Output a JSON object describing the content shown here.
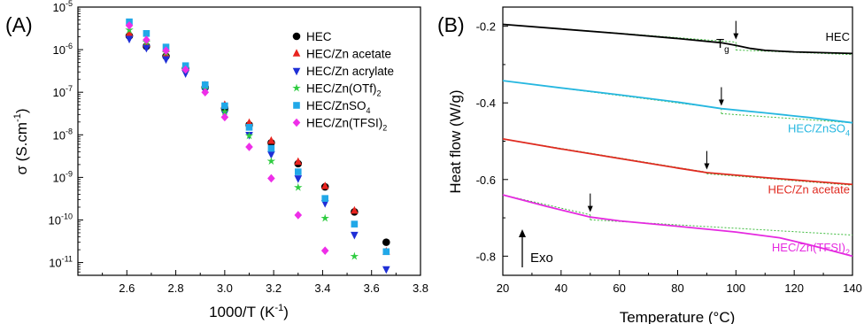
{
  "chart_data": [
    {
      "panel_label": "(A)",
      "type": "scatter",
      "xlabel_main": "1000/T (K",
      "xlabel_sup": "-1",
      "xlabel_end": ")",
      "ylabel_main": "σ (S.cm",
      "ylabel_sup": "-1",
      "ylabel_end": ")",
      "xlim": [
        2.4,
        3.8
      ],
      "ylim_log10": [
        -11.3,
        -5
      ],
      "y_scale": "log",
      "grid": false,
      "legend_position": "top-right",
      "x_ticks": [
        "2.6",
        "2.8",
        "3.0",
        "3.2",
        "3.4",
        "3.6",
        "3.8"
      ],
      "x_tick_values": [
        2.6,
        2.8,
        3.0,
        3.2,
        3.4,
        3.6,
        3.8
      ],
      "y_ticks": [
        {
          "base": "10",
          "exp": "-5",
          "log": -5
        },
        {
          "base": "10",
          "exp": "-6",
          "log": -6
        },
        {
          "base": "10",
          "exp": "-7",
          "log": -7
        },
        {
          "base": "10",
          "exp": "-8",
          "log": -8
        },
        {
          "base": "10",
          "exp": "-9",
          "log": -9
        },
        {
          "base": "10",
          "exp": "-10",
          "log": -10
        },
        {
          "base": "10",
          "exp": "-11",
          "log": -11
        }
      ],
      "x": [
        2.61,
        2.68,
        2.76,
        2.84,
        2.92,
        3.0,
        3.1,
        3.19,
        3.3,
        3.41,
        3.53,
        3.66
      ],
      "series": [
        {
          "name": "HEC",
          "marker": "circle",
          "color": "#000000",
          "values": [
            2.1e-06,
            1.2e-06,
            7e-07,
            3.6e-07,
            1.3e-07,
            4.2e-08,
            1.7e-08,
            6.5e-09,
            2.1e-09,
            6e-10,
            1.55e-10,
            3e-11
          ]
        },
        {
          "name_parts": [
            "HEC/Zn acetate"
          ],
          "name": "HEC/Zn acetate",
          "marker": "triangle-up",
          "color": "#e8231e",
          "values": [
            2.4e-06,
            1.35e-06,
            7.8e-07,
            3.8e-07,
            1.45e-07,
            5e-08,
            1.9e-08,
            7.2e-09,
            2.3e-09,
            6.2e-10,
            1.65e-10,
            1.8e-11
          ]
        },
        {
          "name": "HEC/Zn acrylate",
          "marker": "triangle-down",
          "color": "#1f2fd6",
          "values": [
            1.8e-06,
            1.1e-06,
            6e-07,
            2.8e-07,
            1.1e-07,
            3.2e-08,
            1e-08,
            3.5e-09,
            9.5e-10,
            2.5e-10,
            4.5e-11,
            7e-12
          ]
        },
        {
          "name": "HEC/Zn(OTf)",
          "name_sub": "2",
          "marker": "star",
          "color": "#2ecc40",
          "values": [
            2.9e-06,
            1.5e-06,
            8.5e-07,
            3.5e-07,
            1.2e-07,
            3.5e-08,
            9.5e-09,
            2.4e-09,
            5.8e-10,
            1.1e-10,
            1.4e-11,
            null
          ]
        },
        {
          "name": "HEC/ZnSO",
          "name_sub": "4",
          "marker": "square",
          "color": "#21a8e8",
          "values": [
            4.5e-06,
            2.4e-06,
            1.15e-06,
            4.2e-07,
            1.5e-07,
            4.8e-08,
            1.5e-08,
            4.8e-09,
            1.35e-09,
            3.2e-10,
            8e-11,
            1.8e-11
          ]
        },
        {
          "name": "HEC/Zn(TFSI)",
          "name_sub": "2",
          "marker": "diamond",
          "color": "#ee2ee8",
          "values": [
            3.7e-06,
            1.7e-06,
            9.5e-07,
            3.4e-07,
            1e-07,
            2.6e-08,
            5.2e-09,
            9.5e-10,
            1.3e-10,
            1.9e-11,
            null,
            null
          ]
        }
      ]
    },
    {
      "panel_label": "(B)",
      "type": "line",
      "xlabel": "Temperature (°C)",
      "ylabel": "Heat flow (W/g)",
      "xlim": [
        20,
        140
      ],
      "ylim": [
        -0.85,
        -0.15
      ],
      "grid": false,
      "x_ticks": [
        "20",
        "40",
        "60",
        "80",
        "100",
        "120",
        "140"
      ],
      "x_tick_values": [
        20,
        40,
        60,
        80,
        100,
        120,
        140
      ],
      "y_ticks": [
        "-0.2",
        "-0.4",
        "-0.6",
        "-0.8"
      ],
      "y_tick_values": [
        -0.2,
        -0.4,
        -0.6,
        -0.8
      ],
      "annotation_tg": "T",
      "annotation_tg_sub": "g",
      "annotation_exo": "Exo",
      "fit_line_color": "#3dbb3d",
      "series": [
        {
          "name": "HEC",
          "color": "#000000",
          "tg": 100,
          "x": [
            20,
            40,
            60,
            80,
            95,
            100,
            105,
            110,
            120,
            130,
            140
          ],
          "y": [
            -0.195,
            -0.207,
            -0.219,
            -0.232,
            -0.243,
            -0.25,
            -0.258,
            -0.263,
            -0.267,
            -0.269,
            -0.271
          ],
          "fit_before": [
            -0.195,
            -0.2415
          ],
          "fit_after": [
            -0.262,
            -0.274
          ]
        },
        {
          "name": "HEC/ZnSO",
          "name_sub": "4",
          "color": "#26b7e0",
          "tg": 95,
          "x": [
            20,
            40,
            60,
            80,
            95,
            110,
            125,
            140
          ],
          "y": [
            -0.342,
            -0.361,
            -0.379,
            -0.398,
            -0.415,
            -0.426,
            -0.438,
            -0.452
          ],
          "fit_before": [
            -0.342,
            -0.4145
          ],
          "fit_after": [
            -0.428,
            -0.452
          ]
        },
        {
          "name": "HEC/Zn acetate",
          "color": "#e02a20",
          "tg": 90,
          "x": [
            20,
            40,
            60,
            80,
            90,
            110,
            125,
            140
          ],
          "y": [
            -0.494,
            -0.52,
            -0.545,
            -0.57,
            -0.582,
            -0.595,
            -0.604,
            -0.613
          ],
          "fit_before": [
            -0.494,
            -0.581
          ],
          "fit_after": [
            -0.585,
            -0.615
          ]
        },
        {
          "name": "HEC/Zn(TFSI)",
          "name_sub": "2",
          "color": "#e52ae0",
          "tg": 50,
          "x": [
            20,
            35,
            50,
            60,
            80,
            100,
            115,
            125,
            140
          ],
          "y": [
            -0.64,
            -0.67,
            -0.698,
            -0.708,
            -0.722,
            -0.737,
            -0.752,
            -0.77,
            -0.8
          ],
          "fit_before": [
            -0.64,
            -0.692
          ],
          "fit_after": [
            -0.705,
            -0.745
          ]
        }
      ]
    }
  ]
}
